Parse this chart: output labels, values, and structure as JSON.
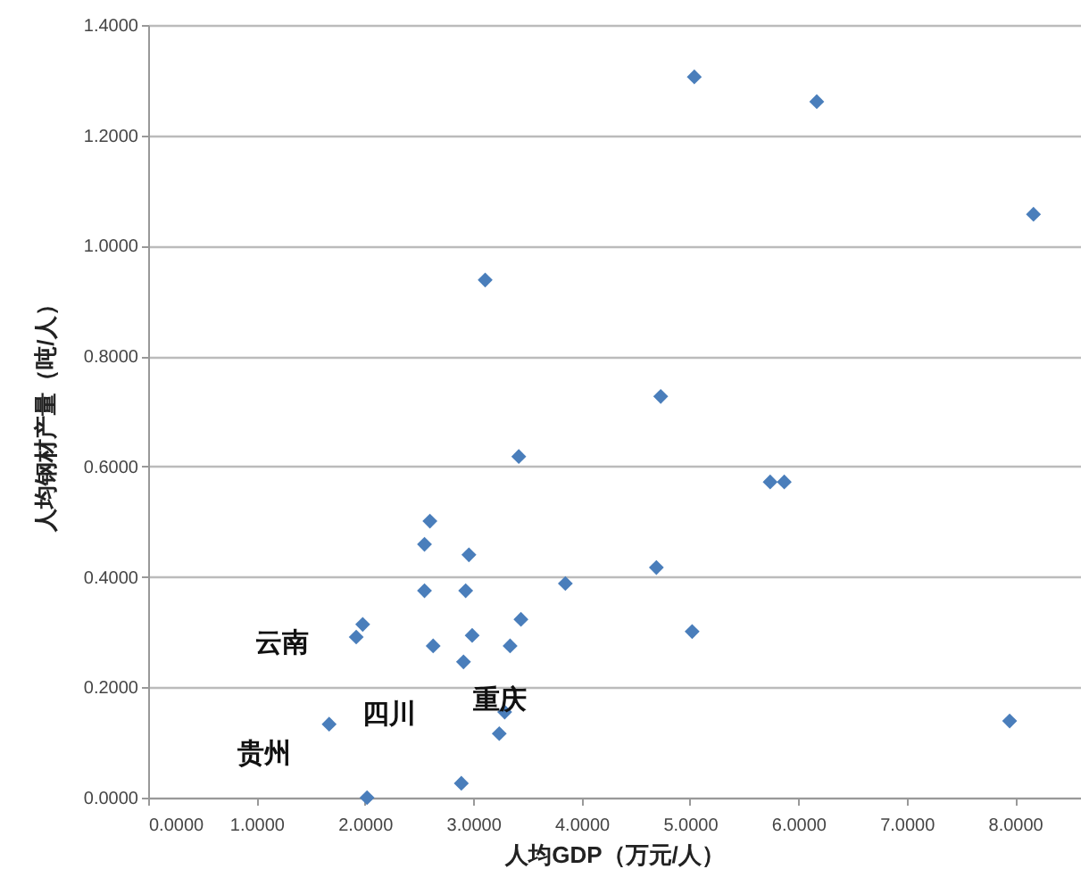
{
  "chart_data": {
    "type": "scatter",
    "xlabel": "人均GDP（万元/人）",
    "ylabel": "人均钢材产量（吨/人）",
    "x": [
      5.04,
      6.17,
      8.17,
      3.11,
      4.73,
      3.42,
      5.74,
      5.87,
      2.6,
      2.55,
      2.96,
      3.85,
      4.69,
      2.55,
      2.93,
      3.44,
      1.98,
      1.92,
      2.99,
      5.02,
      2.63,
      3.34,
      2.91,
      3.29,
      3.24,
      1.67,
      7.95,
      2.89,
      2.02
    ],
    "series": [
      {
        "color": "#4a7ebb",
        "values": [
          1.306,
          1.261,
          1.057,
          0.938,
          0.727,
          0.618,
          0.572,
          0.572,
          0.501,
          0.459,
          0.44,
          0.388,
          0.417,
          0.375,
          0.375,
          0.323,
          0.314,
          0.291,
          0.294,
          0.301,
          0.275,
          0.275,
          0.246,
          0.155,
          0.116,
          0.133,
          0.139,
          0.026,
          0.0
        ]
      }
    ],
    "xlim": [
      0,
      8.6
    ],
    "ylim": [
      0,
      1.4
    ],
    "xticks": [
      {
        "value": 0,
        "label": "0.0000"
      },
      {
        "value": 1,
        "label": "1.0000"
      },
      {
        "value": 2,
        "label": "2.0000"
      },
      {
        "value": 3,
        "label": "3.0000"
      },
      {
        "value": 4,
        "label": "4.0000"
      },
      {
        "value": 5,
        "label": "5.0000"
      },
      {
        "value": 6,
        "label": "6.0000"
      },
      {
        "value": 7,
        "label": "7.0000"
      },
      {
        "value": 8,
        "label": "8.0000"
      }
    ],
    "yticks": [
      {
        "value": 0,
        "label": "0.0000"
      },
      {
        "value": 0.2,
        "label": "0.2000"
      },
      {
        "value": 0.4,
        "label": "0.4000"
      },
      {
        "value": 0.6,
        "label": "0.6000"
      },
      {
        "value": 0.8,
        "label": "0.8000"
      },
      {
        "value": 1,
        "label": "1.0000"
      },
      {
        "value": 1.2,
        "label": "1.2000"
      },
      {
        "value": 1.4,
        "label": "1.4000"
      }
    ],
    "grid": "y",
    "marker": "diamond",
    "annotations": [
      "云南",
      "四川",
      "重庆",
      "贵州"
    ]
  }
}
